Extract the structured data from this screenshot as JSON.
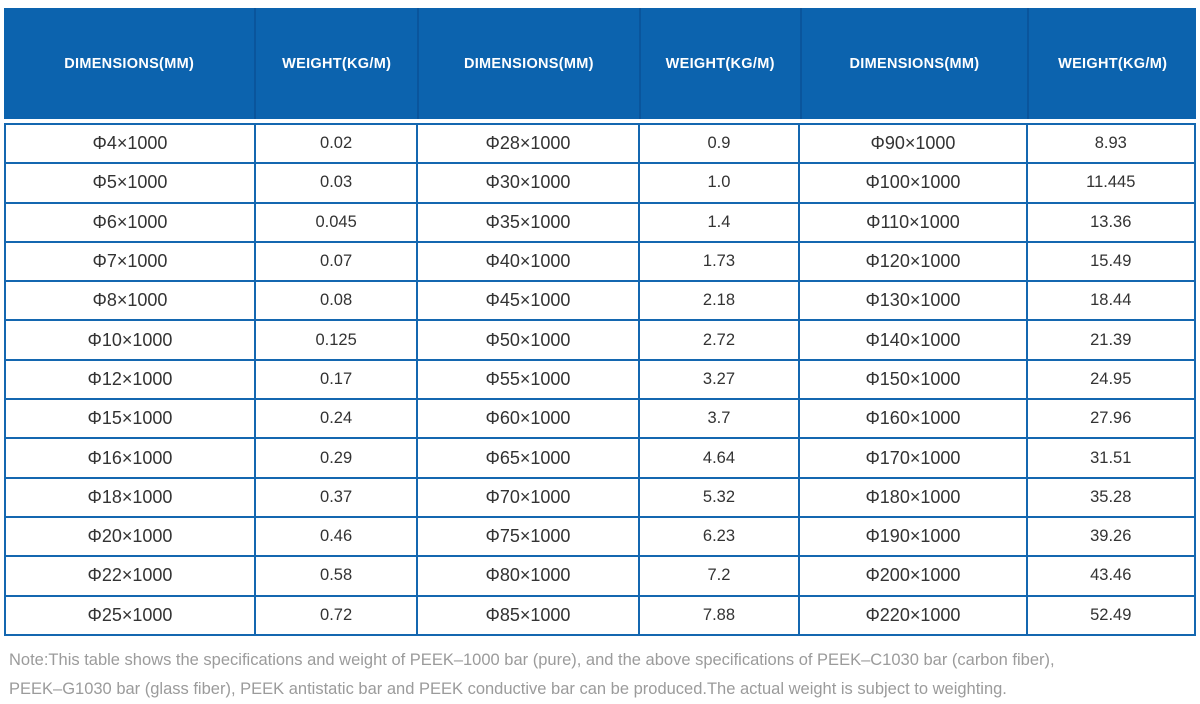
{
  "chart_data": {
    "type": "table",
    "columns": [
      "DIMENSIONS(MM)",
      "WEIGHT(KG/M)",
      "DIMENSIONS(MM)",
      "WEIGHT(KG/M)",
      "DIMENSIONS(MM)",
      "WEIGHT(KG/M)"
    ],
    "rows": [
      [
        "Φ4×1000",
        "0.02",
        "Φ28×1000",
        "0.9",
        "Φ90×1000",
        "8.93"
      ],
      [
        "Φ5×1000",
        "0.03",
        "Φ30×1000",
        "1.0",
        "Φ100×1000",
        "11.445"
      ],
      [
        "Φ6×1000",
        "0.045",
        "Φ35×1000",
        "1.4",
        "Φ110×1000",
        "13.36"
      ],
      [
        "Φ7×1000",
        "0.07",
        "Φ40×1000",
        "1.73",
        "Φ120×1000",
        "15.49"
      ],
      [
        "Φ8×1000",
        "0.08",
        "Φ45×1000",
        "2.18",
        "Φ130×1000",
        "18.44"
      ],
      [
        "Φ10×1000",
        "0.125",
        "Φ50×1000",
        "2.72",
        "Φ140×1000",
        "21.39"
      ],
      [
        "Φ12×1000",
        "0.17",
        "Φ55×1000",
        "3.27",
        "Φ150×1000",
        "24.95"
      ],
      [
        "Φ15×1000",
        "0.24",
        "Φ60×1000",
        "3.7",
        "Φ160×1000",
        "27.96"
      ],
      [
        "Φ16×1000",
        "0.29",
        "Φ65×1000",
        "4.64",
        "Φ170×1000",
        "31.51"
      ],
      [
        "Φ18×1000",
        "0.37",
        "Φ70×1000",
        "5.32",
        "Φ180×1000",
        "35.28"
      ],
      [
        "Φ20×1000",
        "0.46",
        "Φ75×1000",
        "6.23",
        "Φ190×1000",
        "39.26"
      ],
      [
        "Φ22×1000",
        "0.58",
        "Φ80×1000",
        "7.2",
        "Φ200×1000",
        "43.46"
      ],
      [
        "Φ25×1000",
        "0.72",
        "Φ85×1000",
        "7.88",
        "Φ220×1000",
        "52.49"
      ]
    ]
  },
  "note": {
    "lines": [
      "Note:This table shows the specifications and weight of PEEK–1000 bar (pure), and the above specifications of PEEK–C1030 bar (carbon fiber),",
      "PEEK–G1030 bar (glass fiber), PEEK antistatic bar and PEEK conductive bar can be produced.The actual weight is subject to weighting."
    ]
  },
  "colors": {
    "header_bg": "#0c63ae",
    "header_separator": "#0a559c",
    "table_border": "#1467b0",
    "cell_text": "#333333",
    "note_text": "#9b9b9b"
  }
}
